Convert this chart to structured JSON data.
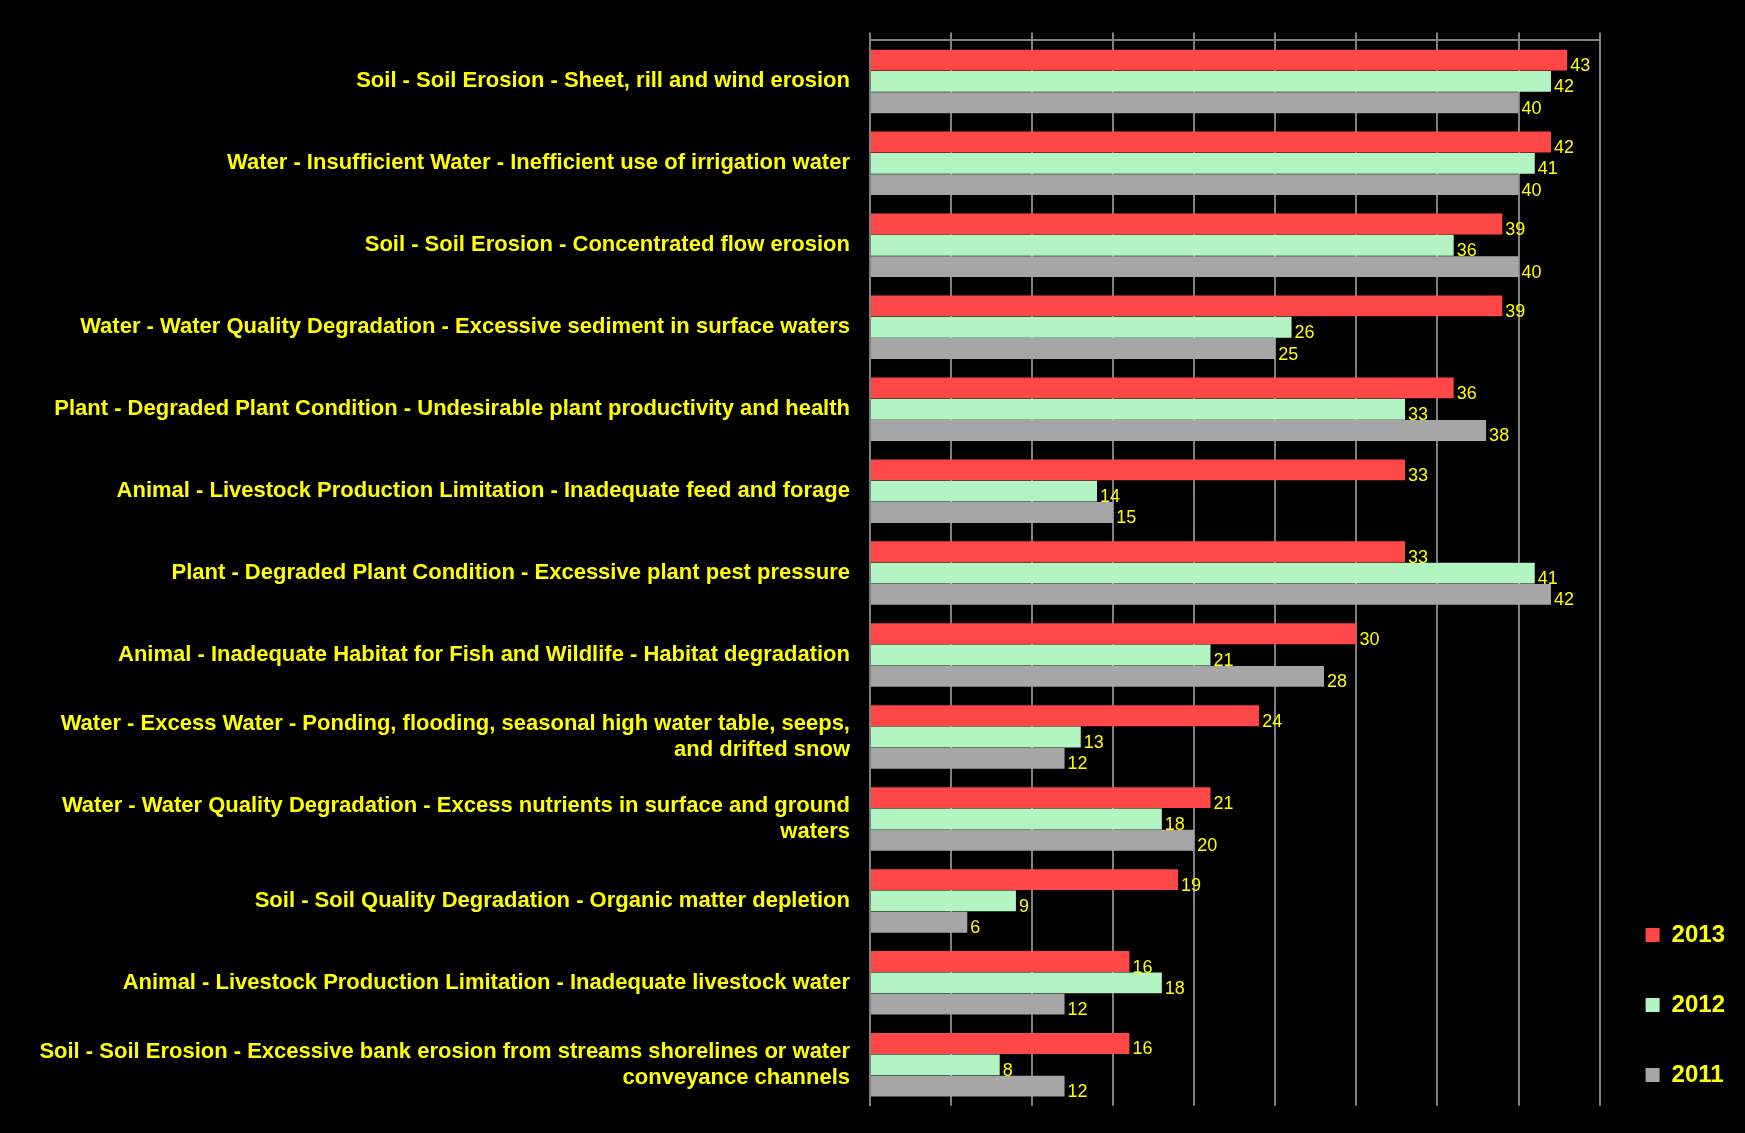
{
  "chart_data": {
    "type": "bar",
    "orientation": "horizontal",
    "categories": [
      "Soil - Soil Erosion - Sheet, rill and wind erosion",
      "Water - Insufficient Water - Inefficient use of irrigation water",
      "Soil - Soil Erosion - Concentrated flow erosion",
      "Water - Water Quality Degradation - Excessive sediment in surface waters",
      "Plant - Degraded Plant Condition - Undesirable plant productivity and health",
      "Animal - Livestock Production Limitation - Inadequate feed and forage",
      "Plant - Degraded Plant Condition - Excessive plant pest pressure",
      "Animal - Inadequate Habitat for Fish and Wildlife - Habitat degradation",
      "Water - Excess Water - Ponding, flooding, seasonal high water table, seeps, and drifted snow",
      "Water - Water Quality Degradation - Excess nutrients in surface and ground waters",
      "Soil - Soil Quality Degradation - Organic matter depletion",
      "Animal - Livestock Production Limitation - Inadequate livestock water",
      "Soil - Soil Erosion - Excessive bank erosion from streams shorelines or water conveyance channels"
    ],
    "series": [
      {
        "name": "2013",
        "color": "#ff4747",
        "values": [
          43,
          42,
          39,
          39,
          36,
          33,
          33,
          30,
          24,
          21,
          19,
          16,
          16
        ]
      },
      {
        "name": "2012",
        "color": "#b3f5c2",
        "values": [
          42,
          41,
          36,
          26,
          33,
          14,
          41,
          21,
          13,
          18,
          9,
          18,
          8
        ]
      },
      {
        "name": "2011",
        "color": "#a6a6a6",
        "values": [
          40,
          40,
          40,
          25,
          38,
          15,
          42,
          28,
          12,
          20,
          6,
          12,
          12
        ]
      }
    ],
    "tick_labels": "y",
    "grid": "x",
    "legend": "right",
    "data_labels": true
  }
}
